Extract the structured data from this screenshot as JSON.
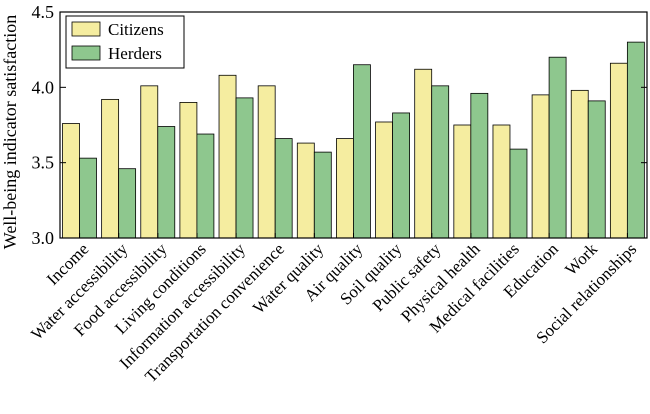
{
  "chart_data": {
    "type": "bar",
    "title": "",
    "xlabel": "",
    "ylabel": "Well-being indicator satisfaction",
    "ylim": [
      3.0,
      4.5
    ],
    "yticks": [
      "3.0",
      "3.5",
      "4.0",
      "4.5"
    ],
    "ytick_values": [
      3.0,
      3.5,
      4.0,
      4.5
    ],
    "grid": false,
    "legend_position": "top-left",
    "categories": [
      "Income",
      "Water accessibility",
      "Food accessibility",
      "Living conditions",
      "Information accessibility",
      "Transportation convenience",
      "Water quality",
      "Air quality",
      "Soil quality",
      "Public safety",
      "Physical health",
      "Medical facilities",
      "Education",
      "Work",
      "Social relationships"
    ],
    "series": [
      {
        "name": "Citizens",
        "color": "#f5eda0",
        "values": [
          3.76,
          3.92,
          4.01,
          3.9,
          4.08,
          4.01,
          3.63,
          3.66,
          3.77,
          4.12,
          3.75,
          3.75,
          3.95,
          3.98,
          4.16
        ]
      },
      {
        "name": "Herders",
        "color": "#8ec78e",
        "values": [
          3.53,
          3.46,
          3.74,
          3.69,
          3.93,
          3.66,
          3.57,
          4.15,
          3.83,
          4.01,
          3.96,
          3.59,
          4.2,
          3.91,
          4.3
        ]
      }
    ]
  }
}
